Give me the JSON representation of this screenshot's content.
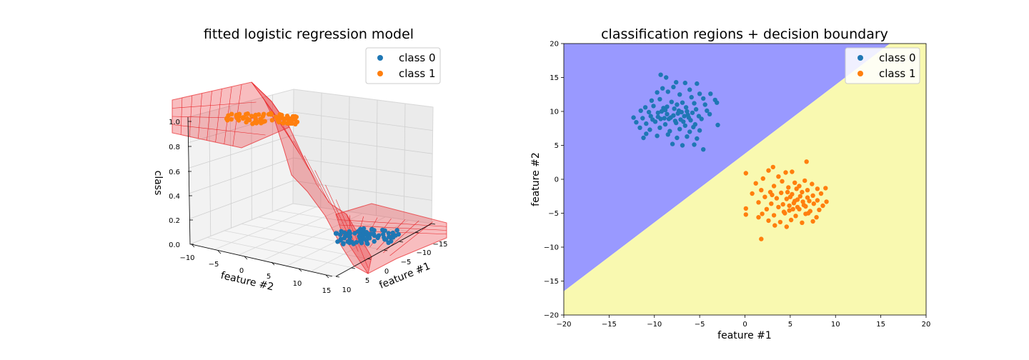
{
  "chart_data": [
    {
      "type": "surface3d",
      "title": "fitted logistic regression model",
      "xlabel": "feature #1",
      "ylabel": "feature #2",
      "zlabel": "class",
      "x_ticks": [
        "15",
        "10",
        "5",
        "0",
        "−5",
        "−10",
        "−15"
      ],
      "y_ticks": [
        "−10",
        "−5",
        "0",
        "5",
        "10",
        "15"
      ],
      "z_ticks": [
        "0.0",
        "0.2",
        "0.4",
        "0.6",
        "0.8",
        "1.0"
      ],
      "legend": [
        "class 0",
        "class 1"
      ],
      "legend_position": "top-right",
      "surface_color": "#e8262a",
      "series": [
        {
          "name": "class 0",
          "color": "#1f77b4",
          "center_feature1": -8,
          "center_feature2": 9,
          "class_value": 0
        },
        {
          "name": "class 1",
          "color": "#ff7f0e",
          "center_feature1": 5,
          "center_feature2": -3,
          "class_value": 1
        }
      ]
    },
    {
      "type": "scatter",
      "title": "classification regions + decision boundary",
      "xlabel": "feature #1",
      "ylabel": "feature #2",
      "xlim": [
        -20,
        20
      ],
      "ylim": [
        -20,
        20
      ],
      "x_ticks": [
        "−20",
        "−15",
        "−10",
        "−5",
        "0",
        "5",
        "10",
        "15",
        "20"
      ],
      "y_ticks": [
        "20",
        "15",
        "10",
        "5",
        "0",
        "−5",
        "−10",
        "−15",
        "−20"
      ],
      "legend": [
        "class 0",
        "class 1"
      ],
      "legend_position": "top-right",
      "regions": [
        {
          "label": "class 0 region",
          "color": "#9999ff"
        },
        {
          "label": "class 1 region",
          "color": "#f9f9b0"
        }
      ],
      "decision_boundary": {
        "points": [
          [
            -20,
            -16.5
          ],
          [
            16,
            20
          ]
        ]
      },
      "series": [
        {
          "name": "class 0",
          "color": "#1f77b4",
          "points": [
            [
              -9.3,
              15.4
            ],
            [
              -8.7,
              15.0
            ],
            [
              -7.6,
              14.3
            ],
            [
              -6.6,
              14.2
            ],
            [
              -5.3,
              14.1
            ],
            [
              -9.1,
              13.4
            ],
            [
              -7.9,
              13.6
            ],
            [
              -6.1,
              13.2
            ],
            [
              -5.0,
              12.6
            ],
            [
              -3.8,
              12.6
            ],
            [
              -9.7,
              12.8
            ],
            [
              -8.5,
              12.9
            ],
            [
              -7.2,
              12.5
            ],
            [
              -5.9,
              12.1
            ],
            [
              -4.6,
              11.9
            ],
            [
              -3.3,
              11.7
            ],
            [
              -10.3,
              11.6
            ],
            [
              -9.4,
              11.8
            ],
            [
              -8.1,
              11.4
            ],
            [
              -6.9,
              11.3
            ],
            [
              -5.6,
              11.2
            ],
            [
              -4.4,
              11.0
            ],
            [
              -3.1,
              11.3
            ],
            [
              -11.0,
              10.6
            ],
            [
              -10.1,
              10.8
            ],
            [
              -9.0,
              10.5
            ],
            [
              -7.8,
              10.4
            ],
            [
              -6.5,
              10.6
            ],
            [
              -5.4,
              10.3
            ],
            [
              -4.2,
              10.1
            ],
            [
              -11.5,
              10.1
            ],
            [
              -10.6,
              9.9
            ],
            [
              -9.6,
              9.8
            ],
            [
              -8.6,
              9.6
            ],
            [
              -7.4,
              9.7
            ],
            [
              -6.3,
              9.5
            ],
            [
              -5.1,
              9.3
            ],
            [
              -3.9,
              9.6
            ],
            [
              -12.3,
              9.1
            ],
            [
              -11.3,
              9.0
            ],
            [
              -10.4,
              9.3
            ],
            [
              -9.3,
              8.9
            ],
            [
              -8.2,
              9.1
            ],
            [
              -7.1,
              8.8
            ],
            [
              -6.0,
              8.7
            ],
            [
              -4.8,
              8.9
            ],
            [
              -12.0,
              8.4
            ],
            [
              -10.9,
              8.2
            ],
            [
              -9.9,
              8.5
            ],
            [
              -8.8,
              8.1
            ],
            [
              -7.6,
              8.3
            ],
            [
              -6.6,
              7.9
            ],
            [
              -5.5,
              8.1
            ],
            [
              -3.0,
              8.0
            ],
            [
              -11.6,
              7.6
            ],
            [
              -10.5,
              7.3
            ],
            [
              -9.4,
              7.6
            ],
            [
              -8.3,
              7.1
            ],
            [
              -7.2,
              7.4
            ],
            [
              -6.1,
              7.0
            ],
            [
              -5.0,
              7.2
            ],
            [
              -10.9,
              6.7
            ],
            [
              -9.7,
              6.4
            ],
            [
              -8.5,
              6.6
            ],
            [
              -7.5,
              6.1
            ],
            [
              -6.4,
              6.3
            ],
            [
              -5.3,
              6.0
            ],
            [
              -11.2,
              6.1
            ],
            [
              -8.0,
              5.2
            ],
            [
              -6.9,
              5.0
            ],
            [
              -5.6,
              5.1
            ],
            [
              -4.6,
              4.4
            ],
            [
              -8.8,
              10.2
            ],
            [
              -7.0,
              9.9
            ],
            [
              -6.2,
              9.1
            ],
            [
              -7.7,
              8.6
            ],
            [
              -8.9,
              9.0
            ],
            [
              -7.3,
              10.1
            ],
            [
              -6.7,
              9.3
            ],
            [
              -9.2,
              10.0
            ],
            [
              -8.4,
              8.9
            ],
            [
              -7.9,
              9.4
            ],
            [
              -6.4,
              10.0
            ],
            [
              -5.8,
              9.8
            ],
            [
              -9.6,
              9.2
            ],
            [
              -8.6,
              10.7
            ],
            [
              -7.5,
              11.0
            ],
            [
              -6.8,
              8.5
            ],
            [
              -5.7,
              7.7
            ],
            [
              -10.2,
              8.8
            ]
          ]
        },
        {
          "name": "class 1",
          "color": "#ff7f0e",
          "points": [
            [
              6.8,
              2.6
            ],
            [
              3.1,
              1.8
            ],
            [
              0.1,
              0.9
            ],
            [
              4.5,
              1.0
            ],
            [
              5.2,
              1.1
            ],
            [
              2.6,
              1.3
            ],
            [
              3.7,
              0.4
            ],
            [
              2.0,
              0.1
            ],
            [
              4.1,
              -0.3
            ],
            [
              5.5,
              -0.5
            ],
            [
              6.6,
              -0.2
            ],
            [
              7.4,
              -0.7
            ],
            [
              1.2,
              -0.6
            ],
            [
              3.2,
              -1.0
            ],
            [
              4.8,
              -1.2
            ],
            [
              6.0,
              -1.0
            ],
            [
              8.0,
              -1.4
            ],
            [
              8.9,
              -1.3
            ],
            [
              1.8,
              -1.6
            ],
            [
              2.8,
              -1.9
            ],
            [
              4.0,
              -2.0
            ],
            [
              5.2,
              -2.2
            ],
            [
              6.3,
              -1.9
            ],
            [
              7.5,
              -2.4
            ],
            [
              8.4,
              -2.1
            ],
            [
              0.8,
              -2.1
            ],
            [
              2.2,
              -2.6
            ],
            [
              3.5,
              -2.8
            ],
            [
              4.6,
              -2.9
            ],
            [
              5.8,
              -3.0
            ],
            [
              6.9,
              -2.7
            ],
            [
              8.0,
              -3.1
            ],
            [
              9.0,
              -3.3
            ],
            [
              1.5,
              -3.4
            ],
            [
              2.9,
              -3.6
            ],
            [
              4.2,
              -3.7
            ],
            [
              5.4,
              -3.5
            ],
            [
              6.5,
              -3.8
            ],
            [
              7.6,
              -3.6
            ],
            [
              8.6,
              -3.9
            ],
            [
              0.1,
              -4.3
            ],
            [
              2.4,
              -4.4
            ],
            [
              3.7,
              -4.1
            ],
            [
              4.9,
              -4.6
            ],
            [
              6.0,
              -4.4
            ],
            [
              7.2,
              -4.7
            ],
            [
              8.2,
              -4.5
            ],
            [
              1.9,
              -5.1
            ],
            [
              3.2,
              -5.3
            ],
            [
              4.4,
              -5.0
            ],
            [
              5.6,
              -5.4
            ],
            [
              6.7,
              -5.1
            ],
            [
              7.9,
              -5.6
            ],
            [
              0.1,
              -5.2
            ],
            [
              1.5,
              -5.6
            ],
            [
              2.6,
              -6.1
            ],
            [
              3.9,
              -6.3
            ],
            [
              5.1,
              -6.0
            ],
            [
              6.3,
              -6.4
            ],
            [
              7.5,
              -6.2
            ],
            [
              3.3,
              -6.8
            ],
            [
              4.6,
              -7.0
            ],
            [
              1.8,
              -8.8
            ],
            [
              5.5,
              -3.2
            ],
            [
              6.1,
              -2.5
            ],
            [
              4.9,
              -3.9
            ],
            [
              5.8,
              -4.1
            ],
            [
              6.4,
              -3.3
            ],
            [
              5.0,
              -2.6
            ],
            [
              7.1,
              -3.2
            ],
            [
              6.7,
              -4.0
            ],
            [
              4.3,
              -4.8
            ],
            [
              5.3,
              -4.4
            ],
            [
              7.0,
              -5.0
            ],
            [
              3.0,
              -2.3
            ],
            [
              5.7,
              -1.4
            ],
            [
              6.9,
              -1.6
            ],
            [
              4.7,
              -1.9
            ]
          ]
        }
      ]
    }
  ]
}
